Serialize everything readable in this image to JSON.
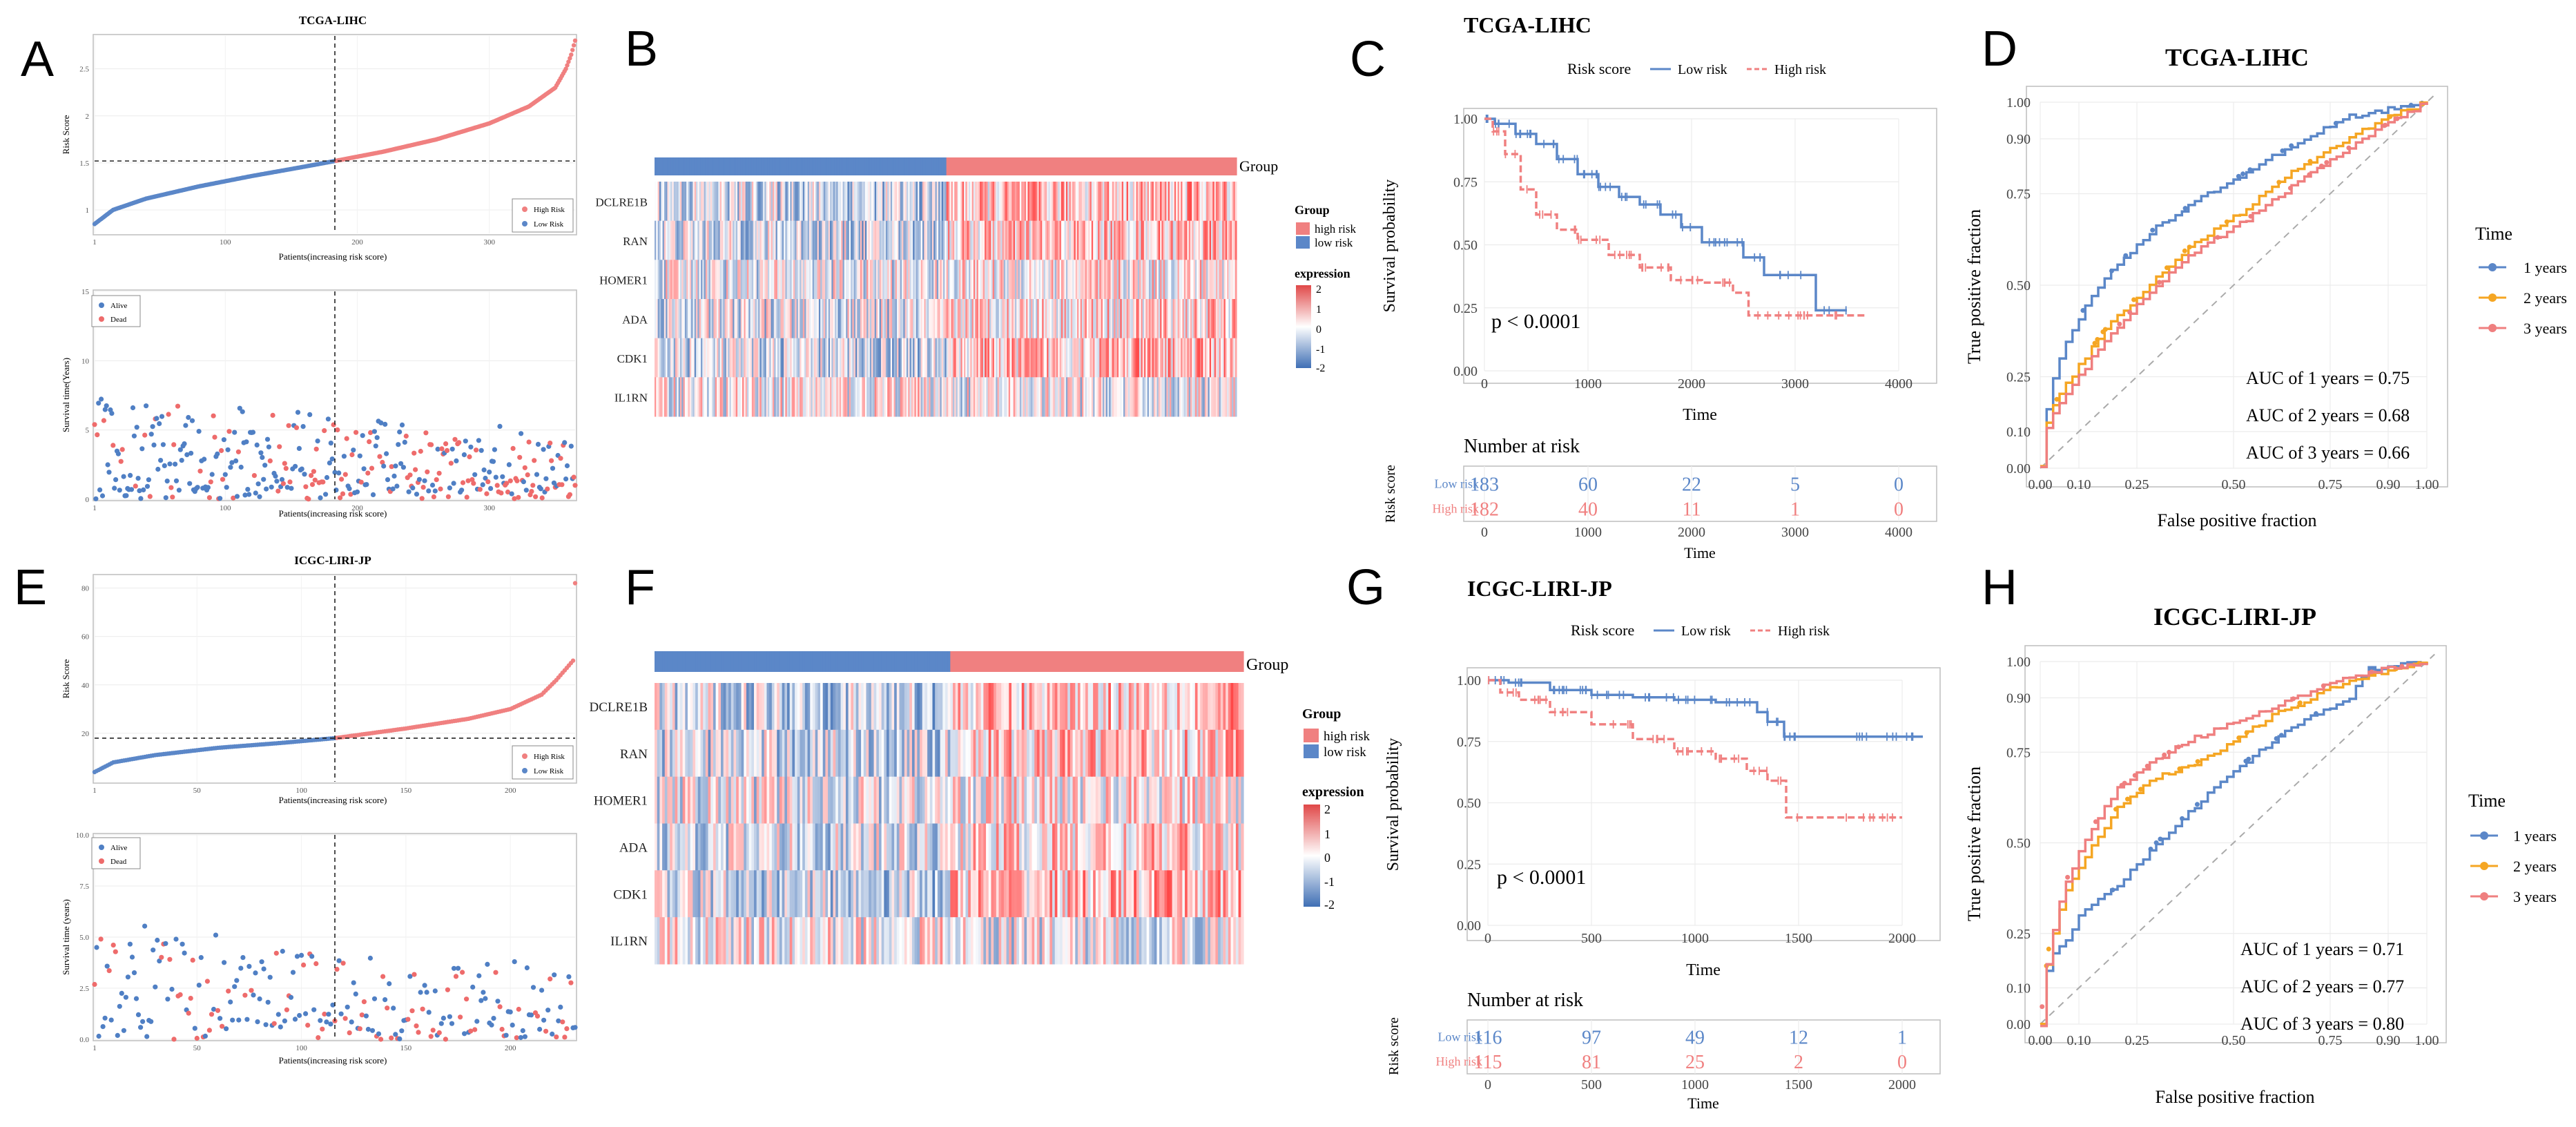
{
  "colors": {
    "high": "#f08080",
    "low": "#5b87c8",
    "alive": "#4f7fc4",
    "dead": "#ee6b6b",
    "y1": "#5b87c8",
    "y2": "#f5a623",
    "y3": "#ef7f7f",
    "heatHigh": "#e04848",
    "heatLow": "#3f6fb5",
    "heatMid": "#ffffff"
  },
  "panel_labels": [
    "A",
    "B",
    "C",
    "D",
    "E",
    "F",
    "G",
    "H"
  ],
  "chart_data": [
    {
      "id": "A1",
      "type": "scatter",
      "title": "TCGA-LIHC",
      "xlabel": "Patients(increasing risk score)",
      "ylabel": "Risk Score",
      "xlim": [
        1,
        365
      ],
      "ylim": [
        0.75,
        2.85
      ],
      "xticks": [
        1,
        100,
        200,
        300
      ],
      "yticks": [
        1.0,
        1.5,
        2.0,
        2.5
      ],
      "cutoff": {
        "x": 183,
        "y": 1.52
      },
      "n": 365,
      "curve_points": [
        [
          1,
          0.85
        ],
        [
          15,
          1.0
        ],
        [
          40,
          1.12
        ],
        [
          80,
          1.25
        ],
        [
          120,
          1.36
        ],
        [
          160,
          1.46
        ],
        [
          183,
          1.52
        ],
        [
          220,
          1.62
        ],
        [
          260,
          1.75
        ],
        [
          300,
          1.92
        ],
        [
          330,
          2.1
        ],
        [
          350,
          2.3
        ],
        [
          358,
          2.5
        ],
        [
          362,
          2.65
        ],
        [
          365,
          2.8
        ]
      ],
      "legend": [
        "High Risk",
        "Low Risk"
      ]
    },
    {
      "id": "A2",
      "type": "scatter",
      "xlabel": "Patients(increasing risk score)",
      "ylabel": "Survival time(Years)",
      "xlim": [
        1,
        365
      ],
      "ylim": [
        0,
        15
      ],
      "xticks": [
        1,
        100,
        200,
        300
      ],
      "yticks": [
        0,
        5,
        10,
        15
      ],
      "cutoff": {
        "x": 183
      },
      "legend": [
        "Alive",
        "Dead"
      ]
    },
    {
      "id": "B",
      "type": "heatmap",
      "genes": [
        "DCLRE1B",
        "RAN",
        "HOMER1",
        "ADA",
        "CDK1",
        "IL1RN"
      ],
      "annotation_label": "Group",
      "n_low": 183,
      "n_high": 182,
      "legend_group_title": "Group",
      "legend_group": [
        "high risk",
        "low risk"
      ],
      "legend_expr_title": "expression",
      "legend_expr_ticks": [
        "2",
        "1",
        "0",
        "-1",
        "-2"
      ]
    },
    {
      "id": "C",
      "type": "line",
      "title": "TCGA-LIHC",
      "legend_title": "Risk score",
      "series_names": [
        "Low risk",
        "High risk"
      ],
      "xlabel": "Time",
      "ylabel": "Survival probability",
      "xlim": [
        0,
        4000
      ],
      "ylim": [
        0,
        1
      ],
      "xticks": [
        0,
        1000,
        2000,
        3000,
        4000
      ],
      "yticks": [
        "0.00",
        "0.25",
        "0.50",
        "0.75",
        "1.00"
      ],
      "pvalue": "p < 0.0001",
      "series": [
        {
          "name": "Low risk",
          "steps": [
            [
              0,
              1
            ],
            [
              100,
              0.98
            ],
            [
              300,
              0.94
            ],
            [
              500,
              0.9
            ],
            [
              700,
              0.84
            ],
            [
              900,
              0.78
            ],
            [
              1100,
              0.73
            ],
            [
              1300,
              0.69
            ],
            [
              1500,
              0.66
            ],
            [
              1700,
              0.62
            ],
            [
              1900,
              0.57
            ],
            [
              2100,
              0.51
            ],
            [
              2500,
              0.45
            ],
            [
              2700,
              0.38
            ],
            [
              3200,
              0.24
            ],
            [
              3500,
              0.24
            ]
          ]
        },
        {
          "name": "High risk",
          "steps": [
            [
              0,
              1
            ],
            [
              80,
              0.95
            ],
            [
              200,
              0.86
            ],
            [
              350,
              0.72
            ],
            [
              500,
              0.62
            ],
            [
              700,
              0.56
            ],
            [
              900,
              0.52
            ],
            [
              1200,
              0.46
            ],
            [
              1500,
              0.41
            ],
            [
              1800,
              0.36
            ],
            [
              2100,
              0.35
            ],
            [
              2400,
              0.31
            ],
            [
              2550,
              0.22
            ],
            [
              3700,
              0.22
            ]
          ]
        }
      ],
      "risk_table": {
        "title": "Number at risk",
        "ylabel": "Risk score",
        "xlabel": "Time",
        "rows": [
          {
            "name": "Low risk",
            "values": [
              183,
              60,
              22,
              5,
              0
            ]
          },
          {
            "name": "High risk",
            "values": [
              182,
              40,
              11,
              1,
              0
            ]
          }
        ],
        "times": [
          0,
          1000,
          2000,
          3000,
          4000
        ]
      }
    },
    {
      "id": "D",
      "type": "line",
      "title": "TCGA-LIHC",
      "xlabel": "False positive fraction",
      "ylabel": "True positive fraction",
      "xticks": [
        "0.00",
        "0.10",
        "0.25",
        "0.50",
        "0.75",
        "0.90",
        "1.00"
      ],
      "yticks": [
        "0.00",
        "0.10",
        "0.25",
        "0.50",
        "0.75",
        "0.90",
        "1.00"
      ],
      "legend_title": "Time",
      "legend": [
        "1 years",
        "2 years",
        "3 years"
      ],
      "auc": [
        "AUC of 1 years = 0.75",
        "AUC of 2 years = 0.68",
        "AUC of 3 years = 0.66"
      ],
      "series": [
        {
          "name": "1 years",
          "points": [
            [
              0,
              0
            ],
            [
              0.02,
              0.2
            ],
            [
              0.06,
              0.33
            ],
            [
              0.12,
              0.45
            ],
            [
              0.2,
              0.56
            ],
            [
              0.3,
              0.66
            ],
            [
              0.42,
              0.74
            ],
            [
              0.55,
              0.82
            ],
            [
              0.68,
              0.9
            ],
            [
              0.8,
              0.96
            ],
            [
              0.9,
              0.98
            ],
            [
              1,
              1
            ]
          ]
        },
        {
          "name": "2 years",
          "points": [
            [
              0,
              0
            ],
            [
              0.02,
              0.15
            ],
            [
              0.08,
              0.25
            ],
            [
              0.16,
              0.37
            ],
            [
              0.26,
              0.48
            ],
            [
              0.38,
              0.6
            ],
            [
              0.52,
              0.7
            ],
            [
              0.64,
              0.8
            ],
            [
              0.76,
              0.88
            ],
            [
              0.88,
              0.95
            ],
            [
              1,
              1
            ]
          ]
        },
        {
          "name": "3 years",
          "points": [
            [
              0,
              0
            ],
            [
              0.02,
              0.13
            ],
            [
              0.08,
              0.22
            ],
            [
              0.16,
              0.34
            ],
            [
              0.26,
              0.46
            ],
            [
              0.38,
              0.58
            ],
            [
              0.52,
              0.67
            ],
            [
              0.64,
              0.76
            ],
            [
              0.76,
              0.85
            ],
            [
              0.88,
              0.93
            ],
            [
              1,
              1
            ]
          ]
        }
      ]
    },
    {
      "id": "E1",
      "type": "scatter",
      "title": "ICGC-LIRI-JP",
      "xlabel": "Patients(increasing risk score)",
      "ylabel": "Risk Score",
      "xlim": [
        1,
        231
      ],
      "ylim": [
        0,
        85
      ],
      "xticks": [
        1,
        50,
        100,
        150,
        200
      ],
      "yticks": [
        20,
        40,
        60,
        80
      ],
      "cutoff": {
        "x": 116,
        "y": 18
      },
      "n": 231,
      "curve_points": [
        [
          1,
          4
        ],
        [
          10,
          8
        ],
        [
          30,
          11
        ],
        [
          60,
          14
        ],
        [
          90,
          16
        ],
        [
          116,
          18
        ],
        [
          150,
          22
        ],
        [
          180,
          26
        ],
        [
          200,
          30
        ],
        [
          215,
          36
        ],
        [
          222,
          42
        ],
        [
          228,
          48
        ],
        [
          230,
          50
        ],
        [
          231,
          82
        ]
      ],
      "legend": [
        "High Risk",
        "Low Risk"
      ]
    },
    {
      "id": "E2",
      "type": "scatter",
      "xlabel": "Patients(increasing risk score)",
      "ylabel": "Survival time (years)",
      "xlim": [
        1,
        231
      ],
      "ylim": [
        0,
        10
      ],
      "xticks": [
        1,
        50,
        100,
        150,
        200
      ],
      "yticks": [
        "0.0",
        "2.5",
        "5.0",
        "7.5",
        "10.0"
      ],
      "cutoff": {
        "x": 116
      },
      "legend": [
        "Alive",
        "Dead"
      ]
    },
    {
      "id": "F",
      "type": "heatmap",
      "genes": [
        "DCLRE1B",
        "RAN",
        "HOMER1",
        "ADA",
        "CDK1",
        "IL1RN"
      ],
      "annotation_label": "Group",
      "n_low": 116,
      "n_high": 115,
      "legend_group_title": "Group",
      "legend_group": [
        "high risk",
        "low risk"
      ],
      "legend_expr_title": "expression",
      "legend_expr_ticks": [
        "2",
        "1",
        "0",
        "-1",
        "-2"
      ]
    },
    {
      "id": "G",
      "type": "line",
      "title": "ICGC-LIRI-JP",
      "legend_title": "Risk score",
      "series_names": [
        "Low risk",
        "High risk"
      ],
      "xlabel": "Time",
      "ylabel": "Survival probability",
      "xlim": [
        0,
        2000
      ],
      "ylim": [
        0,
        1
      ],
      "xticks": [
        0,
        500,
        1000,
        1500,
        2000
      ],
      "yticks": [
        "0.00",
        "0.25",
        "0.50",
        "0.75",
        "1.00"
      ],
      "pvalue": "p < 0.0001",
      "series": [
        {
          "name": "Low risk",
          "steps": [
            [
              0,
              1
            ],
            [
              100,
              0.99
            ],
            [
              300,
              0.96
            ],
            [
              500,
              0.94
            ],
            [
              700,
              0.93
            ],
            [
              900,
              0.92
            ],
            [
              1100,
              0.91
            ],
            [
              1300,
              0.87
            ],
            [
              1350,
              0.83
            ],
            [
              1430,
              0.77
            ],
            [
              2100,
              0.77
            ]
          ]
        },
        {
          "name": "High risk",
          "steps": [
            [
              0,
              1
            ],
            [
              60,
              0.95
            ],
            [
              150,
              0.92
            ],
            [
              300,
              0.87
            ],
            [
              500,
              0.82
            ],
            [
              700,
              0.76
            ],
            [
              900,
              0.71
            ],
            [
              1100,
              0.68
            ],
            [
              1250,
              0.63
            ],
            [
              1350,
              0.59
            ],
            [
              1440,
              0.44
            ],
            [
              2000,
              0.44
            ]
          ]
        }
      ],
      "risk_table": {
        "title": "Number at risk",
        "ylabel": "Risk score",
        "xlabel": "Time",
        "rows": [
          {
            "name": "Low risk",
            "values": [
              116,
              97,
              49,
              12,
              1
            ]
          },
          {
            "name": "High risk",
            "values": [
              115,
              81,
              25,
              2,
              0
            ]
          }
        ],
        "times": [
          0,
          500,
          1000,
          1500,
          2000
        ]
      }
    },
    {
      "id": "H",
      "type": "line",
      "title": "ICGC-LIRI-JP",
      "xlabel": "False positive fraction",
      "ylabel": "True positive fraction",
      "xticks": [
        "0.00",
        "0.10",
        "0.25",
        "0.50",
        "0.75",
        "0.90",
        "1.00"
      ],
      "yticks": [
        "0.00",
        "0.10",
        "0.25",
        "0.50",
        "0.75",
        "0.90",
        "1.00"
      ],
      "legend_title": "Time",
      "legend": [
        "1 years",
        "2 years",
        "3 years"
      ],
      "auc": [
        "AUC of 1 years = 0.71",
        "AUC of 2 years = 0.77",
        "AUC of 3 years = 0.80"
      ],
      "series": [
        {
          "name": "1 years",
          "points": [
            [
              0,
              0
            ],
            [
              0.02,
              0.18
            ],
            [
              0.06,
              0.22
            ],
            [
              0.1,
              0.3
            ],
            [
              0.2,
              0.38
            ],
            [
              0.3,
              0.5
            ],
            [
              0.4,
              0.6
            ],
            [
              0.5,
              0.7
            ],
            [
              0.6,
              0.78
            ],
            [
              0.7,
              0.85
            ],
            [
              0.8,
              0.9
            ],
            [
              0.85,
              0.98
            ],
            [
              1,
              1
            ]
          ]
        },
        {
          "name": "2 years",
          "points": [
            [
              0,
              0
            ],
            [
              0.02,
              0.2
            ],
            [
              0.06,
              0.35
            ],
            [
              0.12,
              0.47
            ],
            [
              0.2,
              0.6
            ],
            [
              0.3,
              0.68
            ],
            [
              0.4,
              0.72
            ],
            [
              0.5,
              0.78
            ],
            [
              0.6,
              0.85
            ],
            [
              0.7,
              0.9
            ],
            [
              0.8,
              0.95
            ],
            [
              1,
              1
            ]
          ]
        },
        {
          "name": "3 years",
          "points": [
            [
              0,
              0
            ],
            [
              0.02,
              0.2
            ],
            [
              0.06,
              0.38
            ],
            [
              0.12,
              0.52
            ],
            [
              0.2,
              0.65
            ],
            [
              0.3,
              0.73
            ],
            [
              0.4,
              0.79
            ],
            [
              0.5,
              0.83
            ],
            [
              0.6,
              0.87
            ],
            [
              0.7,
              0.92
            ],
            [
              0.8,
              0.96
            ],
            [
              1,
              1
            ]
          ]
        }
      ]
    }
  ]
}
